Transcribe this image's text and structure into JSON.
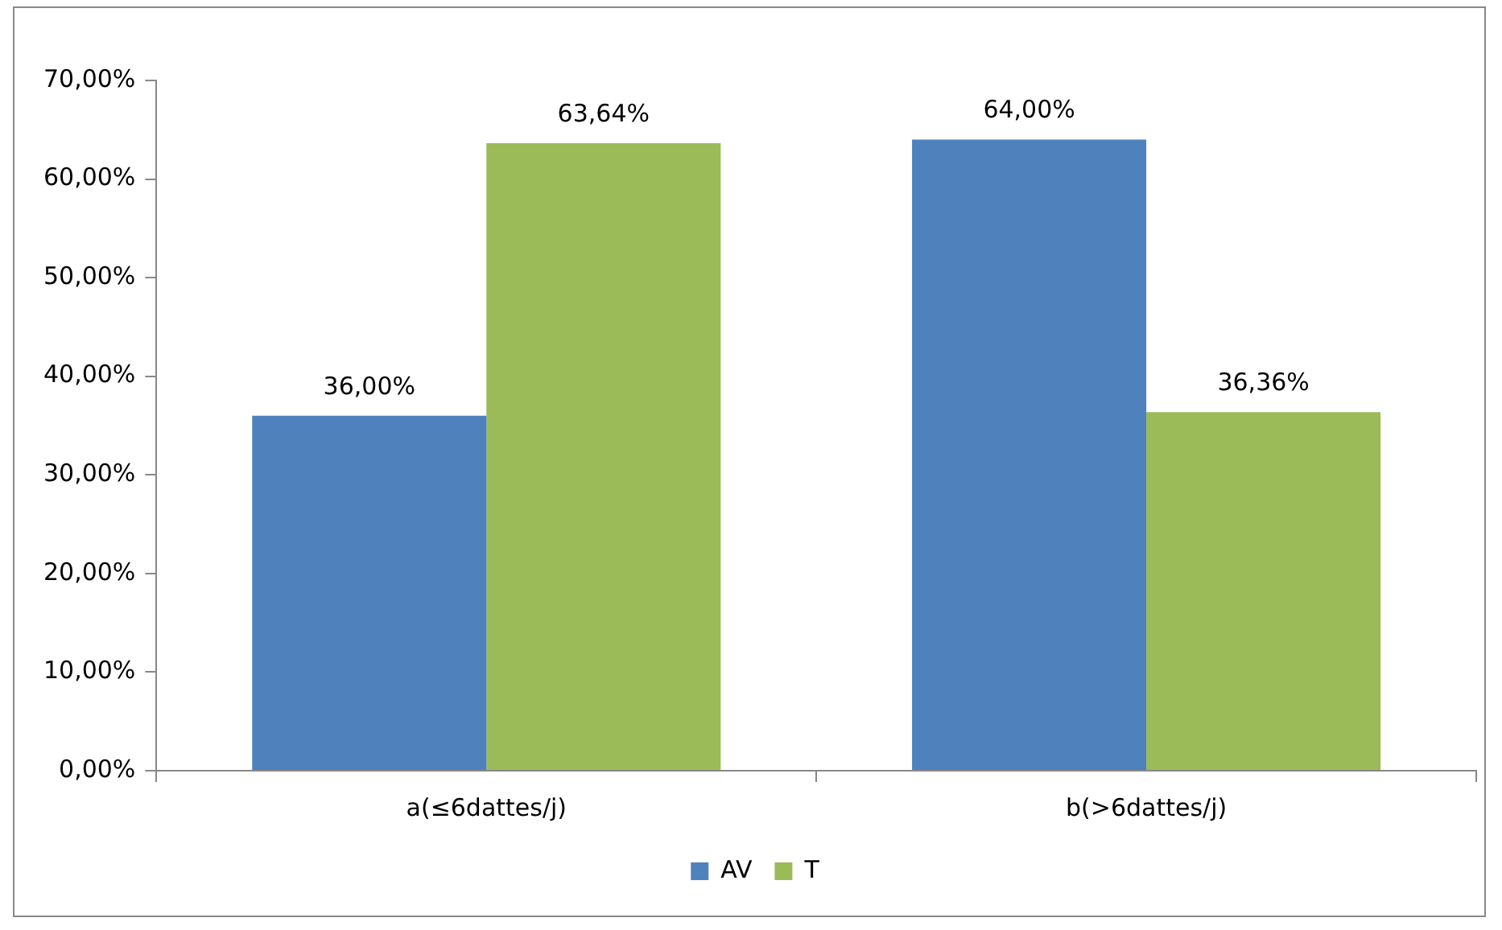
{
  "chart_data": {
    "type": "bar",
    "categories": [
      "a(≤6dattes/j)",
      "b(>6dattes/j)"
    ],
    "series": [
      {
        "name": "AV",
        "color": "#4f81bd",
        "values": [
          36,
          64
        ],
        "value_labels": [
          "36,00%",
          "64,00%"
        ]
      },
      {
        "name": "T",
        "color": "#9bbb59",
        "values": [
          63.64,
          36.36
        ],
        "value_labels": [
          "63,64%",
          "36,36%"
        ]
      }
    ],
    "ylim": [
      0,
      70
    ],
    "yticks": [
      {
        "value": 0,
        "label": "0,00%"
      },
      {
        "value": 10,
        "label": "10,00%"
      },
      {
        "value": 20,
        "label": "20,00%"
      },
      {
        "value": 30,
        "label": "30,00%"
      },
      {
        "value": 40,
        "label": "40,00%"
      },
      {
        "value": 50,
        "label": "50,00%"
      },
      {
        "value": 60,
        "label": "60,00%"
      },
      {
        "value": 70,
        "label": "70,00%"
      }
    ],
    "grid": false,
    "legend": "bottom"
  }
}
